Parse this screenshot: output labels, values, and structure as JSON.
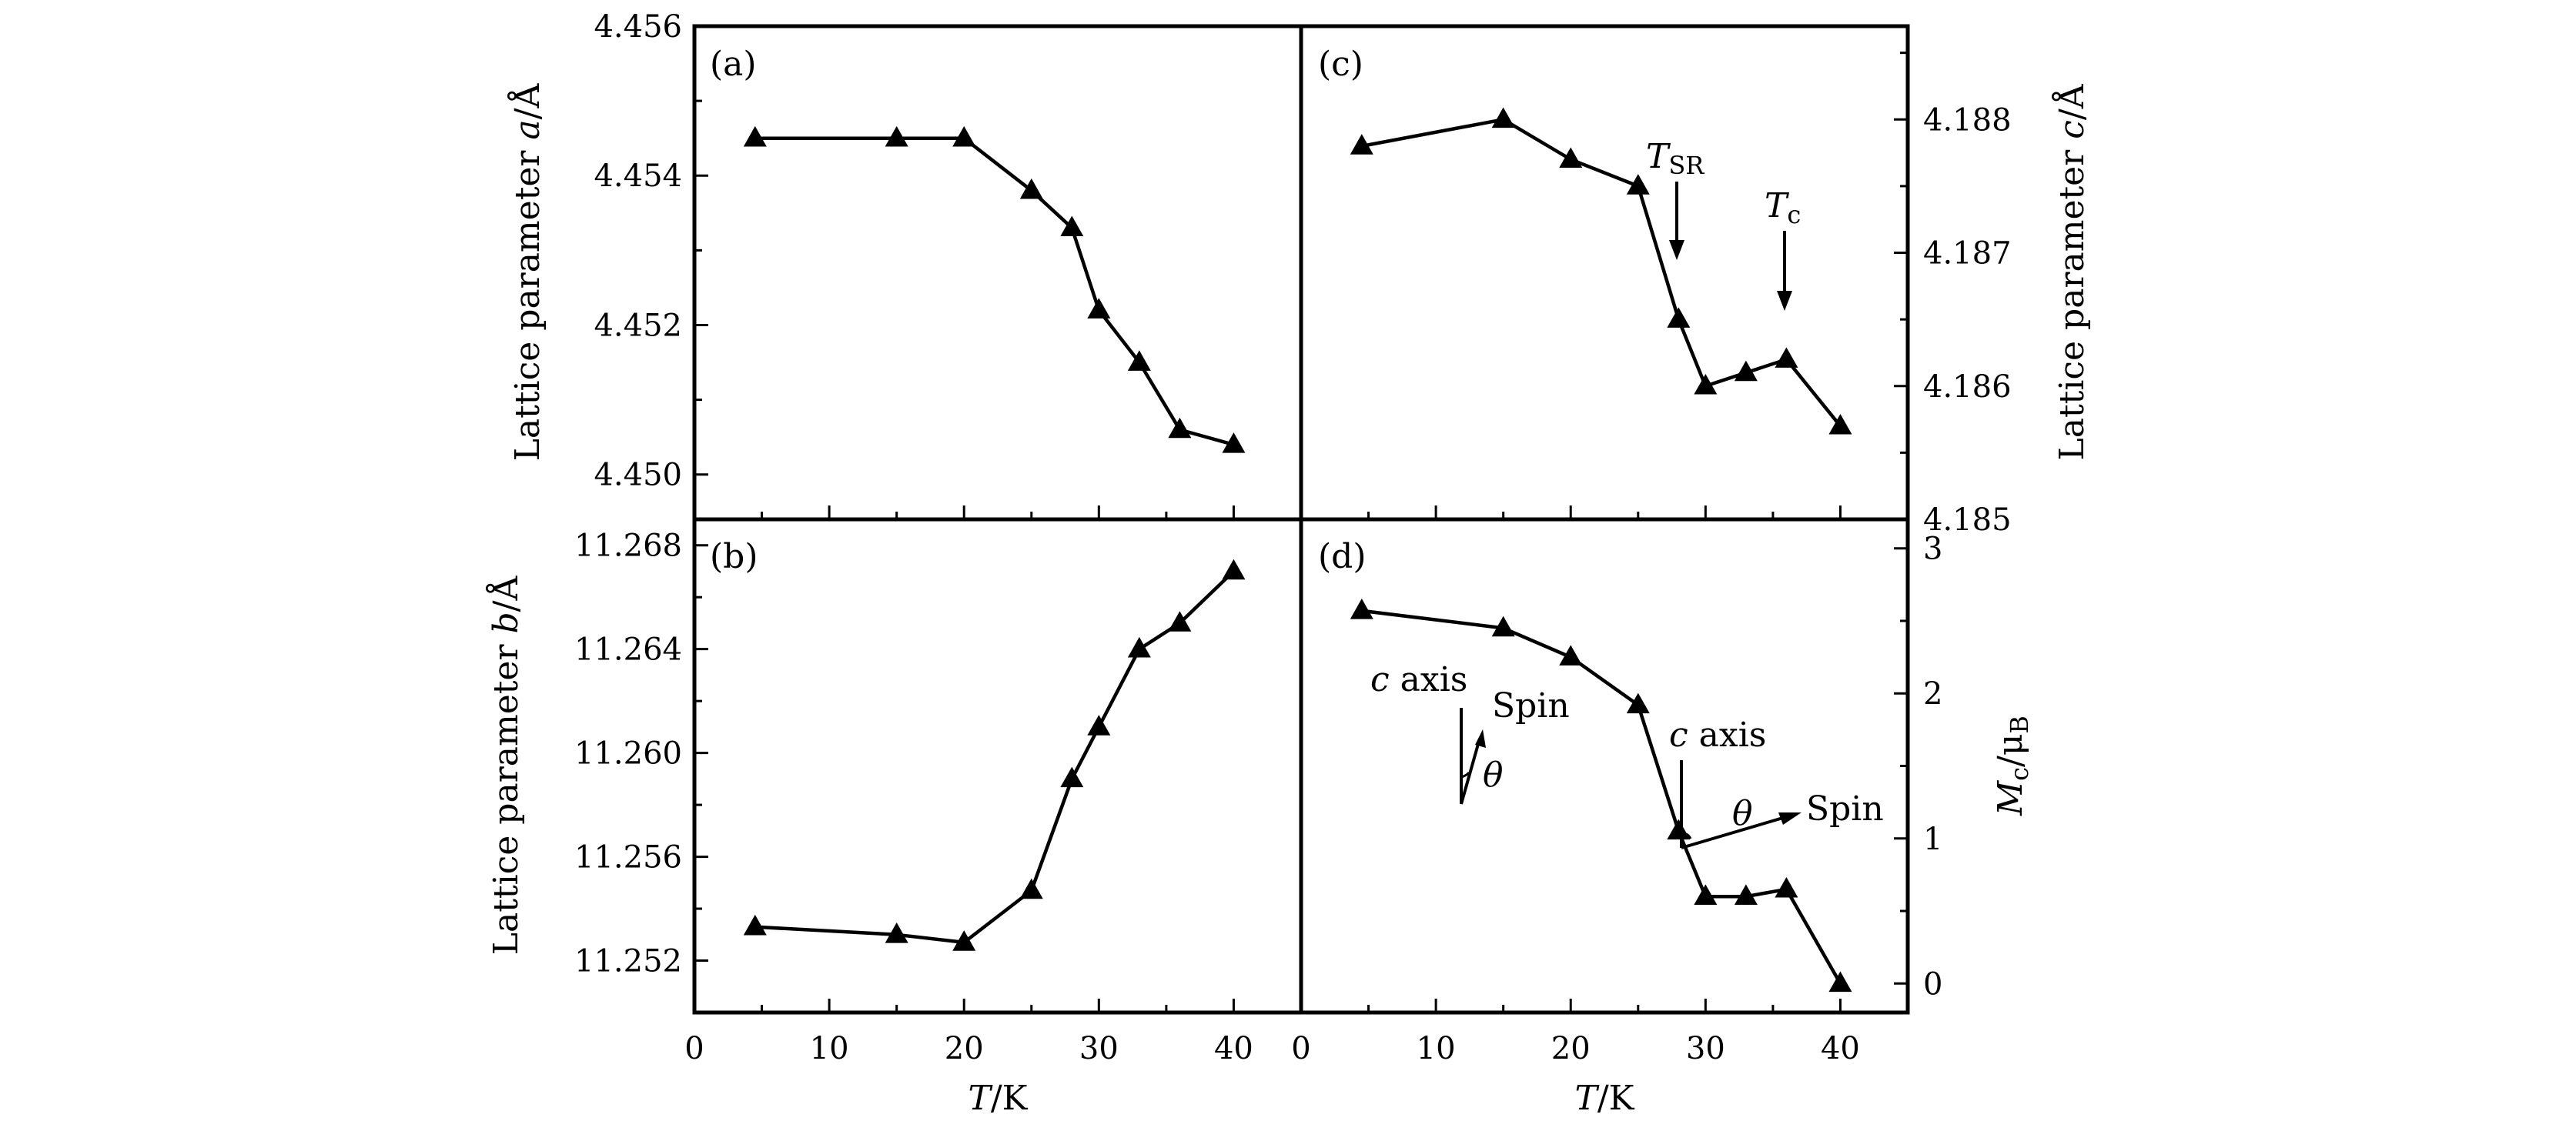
{
  "chart_data": [
    {
      "panel": "(a)",
      "type": "line",
      "title": "",
      "xlabel": "",
      "ylabel": "Lattice parameter a/Å",
      "ylabel_parts": [
        "Lattice parameter ",
        "a",
        "/Å"
      ],
      "xlim": [
        0,
        45
      ],
      "ylim": [
        4.4494,
        4.456
      ],
      "yticks": [
        "4.450",
        "4.452",
        "4.454",
        "4.456"
      ],
      "ytick_values": [
        4.45,
        4.452,
        4.454,
        4.456
      ],
      "x": [
        4.5,
        15,
        20,
        25,
        28,
        30,
        33,
        36,
        40
      ],
      "values": [
        4.4545,
        4.4545,
        4.4545,
        4.4538,
        4.4533,
        4.4522,
        4.4515,
        4.4506,
        4.4504
      ]
    },
    {
      "panel": "(b)",
      "type": "line",
      "title": "",
      "xlabel": "T/K",
      "ylabel": "Lattice parameter b/Å",
      "ylabel_parts": [
        "Lattice parameter ",
        "b",
        "/Å"
      ],
      "xlim": [
        0,
        45
      ],
      "ylim": [
        11.25,
        11.269
      ],
      "xticks": [
        "0",
        "10",
        "20",
        "30",
        "40"
      ],
      "yticks": [
        "11.252",
        "11.256",
        "11.260",
        "11.264",
        "11.268"
      ],
      "ytick_values": [
        11.252,
        11.256,
        11.26,
        11.264,
        11.268
      ],
      "x": [
        4.5,
        15,
        20,
        25,
        28,
        30,
        33,
        36,
        40
      ],
      "values": [
        11.2533,
        11.253,
        11.2527,
        11.2547,
        11.259,
        11.261,
        11.264,
        11.265,
        11.267
      ]
    },
    {
      "panel": "(c)",
      "type": "line",
      "title": "",
      "xlabel": "",
      "ylabel": "Lattice parameter c/Å",
      "ylabel_parts": [
        "Lattice parameter ",
        "c",
        "/Å"
      ],
      "xlim": [
        0,
        45
      ],
      "ylim": [
        4.185,
        4.1887
      ],
      "yticks": [
        "4.185",
        "4.186",
        "4.187",
        "4.188"
      ],
      "ytick_values": [
        4.185,
        4.186,
        4.187,
        4.188
      ],
      "x": [
        4.5,
        15,
        20,
        25,
        28,
        30,
        33,
        36,
        40
      ],
      "values": [
        4.1878,
        4.188,
        4.1877,
        4.1875,
        4.1865,
        4.186,
        4.1861,
        4.1862,
        4.1857
      ],
      "annotations": [
        {
          "label": "T",
          "sub": "SR",
          "x": 28
        },
        {
          "label": "T",
          "sub": "c",
          "x": 36
        }
      ]
    },
    {
      "panel": "(d)",
      "type": "line",
      "title": "",
      "xlabel": "T/K",
      "ylabel": "Mc/μB",
      "ylabel_parts": [
        "M",
        "c",
        "/μ",
        "B"
      ],
      "xlim": [
        0,
        45
      ],
      "ylim": [
        -0.2,
        3.2
      ],
      "xticks": [
        "0",
        "10",
        "20",
        "30",
        "40"
      ],
      "yticks": [
        "0",
        "1",
        "2",
        "3"
      ],
      "ytick_values": [
        0,
        1,
        2,
        3
      ],
      "x": [
        4.5,
        15,
        20,
        25,
        28,
        30,
        33,
        36,
        40
      ],
      "values": [
        2.57,
        2.45,
        2.25,
        1.92,
        1.05,
        0.6,
        0.6,
        0.65,
        0.0
      ],
      "insets": [
        {
          "axis": "c axis",
          "spin": "Spin",
          "angle": "θ",
          "state": "low-T"
        },
        {
          "axis": "c axis",
          "spin": "Spin",
          "angle": "θ",
          "state": "high-T"
        }
      ]
    }
  ]
}
